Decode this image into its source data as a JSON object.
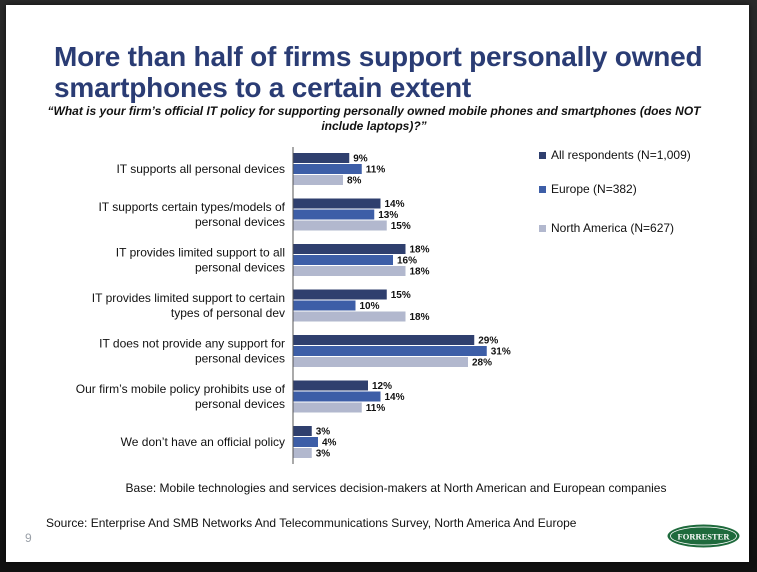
{
  "slide": {
    "title": "More than half of firms support personally owned smartphones to a certain extent",
    "question": "“What is your firm’s official IT policy for supporting personally owned mobile phones and smartphones (does NOT include laptops)?”",
    "base": "Base: Mobile technologies and services decision-makers at North American and European companies",
    "source": "Source: Enterprise And SMB Networks And Telecommunications Survey, North America And Europe",
    "page_number": "9",
    "logo_text": "FORRESTER"
  },
  "colors": {
    "all_respondents": "#2f3f6e",
    "europe": "#3d5ea7",
    "north_america": "#b2b8ce",
    "title": "#2a3c74",
    "logo": "#1e6a3c"
  },
  "chart_data": {
    "type": "bar",
    "orientation": "horizontal",
    "categories": [
      [
        "IT supports all personal devices"
      ],
      [
        "IT supports certain types/models of",
        "personal devices"
      ],
      [
        "IT provides limited support to all",
        "personal devices"
      ],
      [
        "IT provides limited support to certain",
        "types of personal dev"
      ],
      [
        "IT does not provide any support for",
        "personal devices"
      ],
      [
        "Our firm’s mobile policy prohibits use of",
        "personal devices"
      ],
      [
        "We don’t have an official policy"
      ]
    ],
    "series": [
      {
        "name": "All respondents (N=1,009)",
        "values": [
          9,
          14,
          18,
          15,
          29,
          12,
          3
        ]
      },
      {
        "name": "Europe (N=382)",
        "values": [
          11,
          13,
          16,
          10,
          31,
          14,
          4
        ]
      },
      {
        "name": "North America (N=627)",
        "values": [
          8,
          15,
          18,
          18,
          28,
          11,
          3
        ]
      }
    ],
    "value_suffix": "%",
    "legend_position": "right",
    "grid": false
  }
}
